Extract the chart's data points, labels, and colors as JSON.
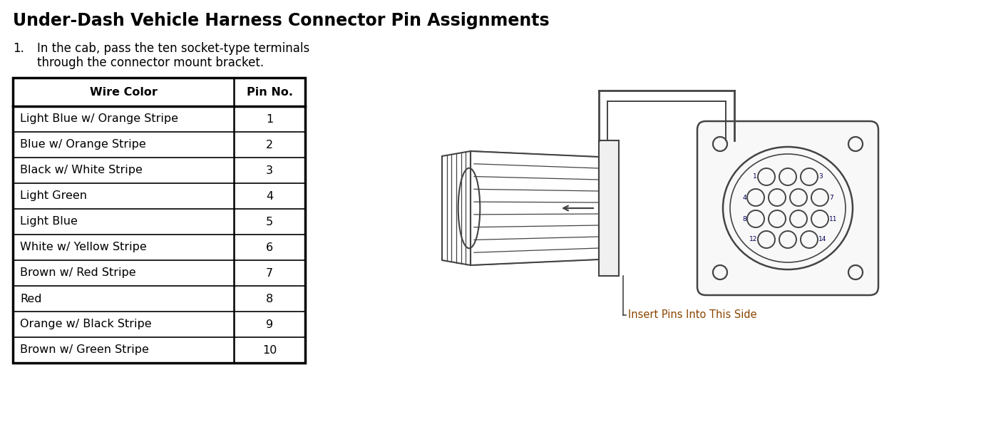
{
  "title": "Under-Dash Vehicle Harness Connector Pin Assignments",
  "instruction_number": "1.",
  "instruction_text1": "In the cab, pass the ten socket-type terminals",
  "instruction_text2": "through the connector mount bracket.",
  "table_headers": [
    "Wire Color",
    "Pin No."
  ],
  "table_rows": [
    [
      "Light Blue w/ Orange Stripe",
      "1"
    ],
    [
      "Blue w/ Orange Stripe",
      "2"
    ],
    [
      "Black w/ White Stripe",
      "3"
    ],
    [
      "Light Green",
      "4"
    ],
    [
      "Light Blue",
      "5"
    ],
    [
      "White w/ Yellow Stripe",
      "6"
    ],
    [
      "Brown w/ Red Stripe",
      "7"
    ],
    [
      "Red",
      "8"
    ],
    [
      "Orange w/ Black Stripe",
      "9"
    ],
    [
      "Brown w/ Green Stripe",
      "10"
    ]
  ],
  "insert_label": "Insert Pins Into This Side",
  "bg_color": "#ffffff",
  "text_color": "#000000",
  "table_text_color": "#000000",
  "header_text_color": "#000000",
  "diagram_color": "#444444",
  "title_fontsize": 17,
  "body_fontsize": 12,
  "table_fontsize": 11.5,
  "insert_label_color": "#8B4500",
  "pin_label_color": "#000055"
}
